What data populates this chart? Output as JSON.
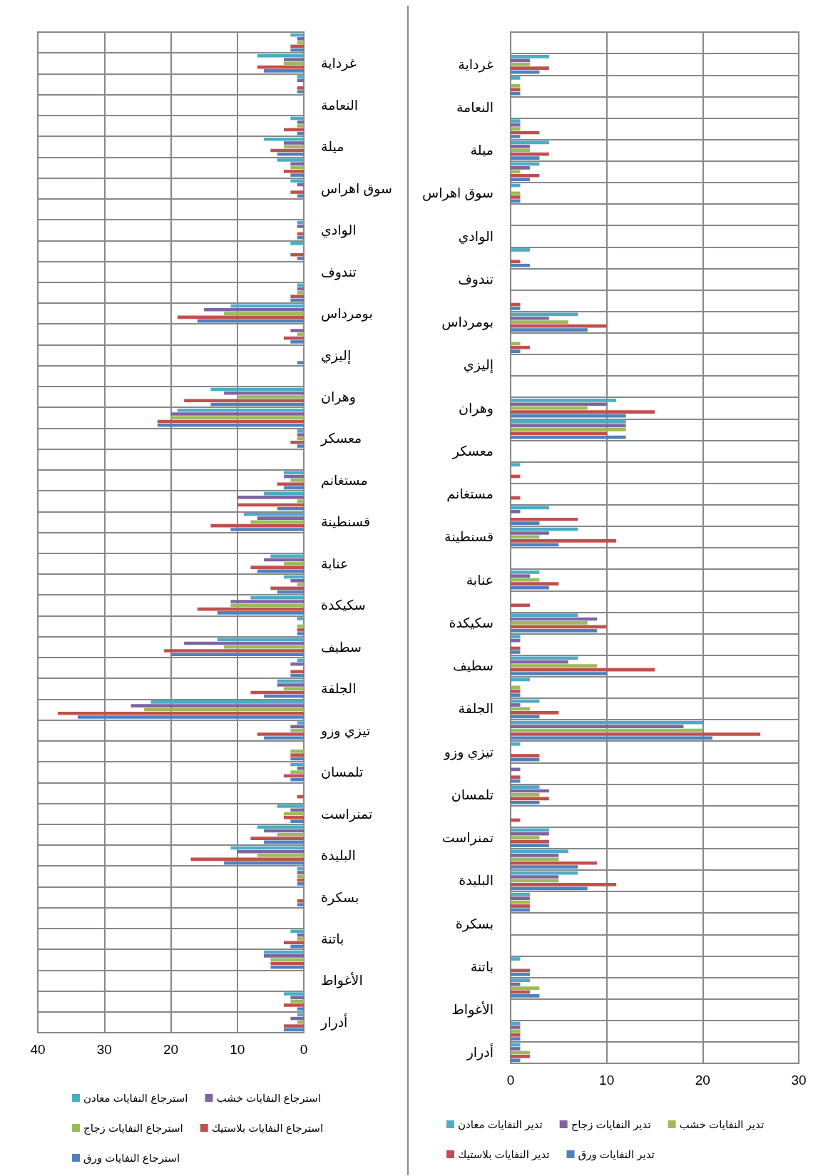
{
  "chart_data": [
    {
      "type": "bar",
      "orientation": "horizontal",
      "grid": true,
      "legend": "bottom",
      "categories": [
        null,
        "غرداية",
        null,
        "النعامة",
        null,
        "ميلة",
        null,
        "سوق اهراس",
        null,
        "الوادي",
        null,
        "تندوف",
        null,
        "بومرداس",
        null,
        "إليزي",
        null,
        "وهران",
        null,
        "معسكر",
        null,
        "مستغانم",
        null,
        "قسنطينة",
        null,
        "عنابة",
        null,
        "سكيكدة",
        null,
        "سطيف",
        null,
        "الجلفة",
        null,
        "تيزي وزو",
        null,
        "تلمسان",
        null,
        "تمنراست",
        null,
        "البليدة",
        null,
        "بسكرة",
        null,
        "باتنة",
        null,
        "الأغواط",
        null,
        "أدرار"
      ],
      "xlim": [
        40,
        0
      ],
      "xticks": [
        0,
        10,
        20,
        30,
        40
      ],
      "series": [
        {
          "name": "استرجاع النفايات معادن",
          "color": "#4bacc6",
          "values": [
            2,
            7,
            1,
            0,
            2,
            6,
            4,
            2,
            0,
            1,
            2,
            0,
            1,
            11,
            0,
            0,
            0,
            14,
            19,
            1,
            0,
            3,
            6,
            9,
            0,
            5,
            3,
            8,
            1,
            13,
            1,
            4,
            23,
            1,
            0,
            2,
            0,
            4,
            7,
            11,
            1,
            0,
            0,
            2,
            6,
            0,
            3,
            1
          ]
        },
        {
          "name": "استرجاع النفايات خشب",
          "color": "#8064a2",
          "values": [
            1,
            3,
            1,
            0,
            1,
            3,
            2,
            1,
            0,
            1,
            0,
            0,
            1,
            15,
            2,
            0,
            0,
            12,
            20,
            1,
            0,
            3,
            10,
            7,
            0,
            6,
            2,
            11,
            0,
            18,
            2,
            4,
            26,
            2,
            0,
            1,
            0,
            2,
            6,
            10,
            1,
            0,
            0,
            1,
            6,
            0,
            2,
            2
          ]
        },
        {
          "name": "استرجاع النفايات زجاج",
          "color": "#9bbb59",
          "values": [
            1,
            3,
            0,
            0,
            1,
            3,
            2,
            0,
            0,
            0,
            0,
            0,
            1,
            12,
            1,
            0,
            0,
            10,
            20,
            1,
            0,
            2,
            1,
            8,
            0,
            3,
            1,
            11,
            1,
            12,
            0,
            3,
            24,
            2,
            2,
            2,
            0,
            3,
            4,
            7,
            1,
            0,
            0,
            1,
            5,
            0,
            2,
            1
          ]
        },
        {
          "name": "استرجاع النفايات بلاستيك",
          "color": "#c0504d",
          "values": [
            2,
            7,
            1,
            0,
            3,
            5,
            3,
            2,
            0,
            1,
            2,
            0,
            2,
            19,
            3,
            0,
            0,
            18,
            22,
            2,
            0,
            4,
            10,
            14,
            0,
            8,
            5,
            16,
            1,
            21,
            2,
            8,
            37,
            7,
            2,
            3,
            1,
            3,
            8,
            17,
            1,
            1,
            0,
            3,
            5,
            0,
            3,
            3
          ]
        },
        {
          "name": "استرجاع النفايات ورق",
          "color": "#4f81bd",
          "values": [
            2,
            6,
            1,
            0,
            1,
            4,
            2,
            1,
            0,
            1,
            1,
            0,
            2,
            16,
            2,
            1,
            0,
            14,
            22,
            1,
            0,
            3,
            4,
            11,
            0,
            7,
            4,
            13,
            1,
            20,
            2,
            6,
            34,
            6,
            2,
            2,
            0,
            2,
            6,
            12,
            1,
            1,
            0,
            2,
            5,
            0,
            1,
            3
          ]
        }
      ]
    },
    {
      "type": "bar",
      "orientation": "horizontal",
      "grid": true,
      "legend": "bottom",
      "categories": [
        null,
        "غرداية",
        null,
        "النعامة",
        null,
        "ميلة",
        null,
        "سوق اهراس",
        null,
        "الوادي",
        null,
        "تندوف",
        null,
        "بومرداس",
        null,
        "إليزي",
        null,
        "وهران",
        null,
        "معسكر",
        null,
        "مستغانم",
        null,
        "قسنطينة",
        null,
        "عنابة",
        null,
        "سكيكدة",
        null,
        "سطيف",
        null,
        "الجلفة",
        null,
        "تيزي وزو",
        null,
        "تلمسان",
        null,
        "تمنراست",
        null,
        "البليدة",
        null,
        "بسكرة",
        null,
        "باتنة",
        null,
        "الأغواط",
        null,
        "أدرار"
      ],
      "xlim": [
        0,
        30
      ],
      "xticks": [
        0,
        10,
        20,
        30
      ],
      "series": [
        {
          "name": "تدير النفايات معادن",
          "color": "#4bacc6",
          "values": [
            0,
            4,
            1,
            0,
            1,
            4,
            3,
            1,
            0,
            0,
            2,
            0,
            0,
            7,
            0,
            0,
            0,
            11,
            12,
            0,
            1,
            0,
            4,
            7,
            0,
            3,
            0,
            7,
            1,
            7,
            2,
            3,
            20,
            1,
            0,
            3,
            0,
            4,
            6,
            7,
            2,
            0,
            0,
            1,
            2,
            0,
            1,
            1
          ]
        },
        {
          "name": "تدير النفايات زجاج",
          "color": "#8064a2",
          "values": [
            0,
            2,
            0,
            0,
            1,
            2,
            2,
            0,
            0,
            0,
            0,
            0,
            0,
            4,
            0,
            0,
            0,
            10,
            12,
            0,
            0,
            0,
            1,
            4,
            0,
            2,
            0,
            9,
            1,
            6,
            0,
            1,
            18,
            0,
            1,
            4,
            0,
            4,
            5,
            5,
            2,
            0,
            0,
            0,
            1,
            0,
            1,
            1
          ]
        },
        {
          "name": "تدير النفايات خشب",
          "color": "#9bbb59",
          "values": [
            0,
            2,
            1,
            0,
            1,
            2,
            1,
            1,
            0,
            0,
            0,
            0,
            0,
            6,
            1,
            0,
            0,
            8,
            12,
            0,
            0,
            0,
            0,
            3,
            0,
            3,
            0,
            8,
            0,
            9,
            1,
            2,
            20,
            0,
            0,
            3,
            0,
            3,
            5,
            5,
            2,
            0,
            0,
            0,
            3,
            0,
            1,
            2
          ]
        },
        {
          "name": "تدير النفايات بلاستيك",
          "color": "#c0504d",
          "values": [
            0,
            4,
            1,
            0,
            3,
            4,
            3,
            1,
            0,
            0,
            1,
            0,
            1,
            10,
            2,
            0,
            0,
            15,
            10,
            0,
            1,
            1,
            7,
            11,
            0,
            5,
            2,
            10,
            1,
            15,
            1,
            5,
            26,
            3,
            1,
            4,
            1,
            4,
            9,
            11,
            2,
            0,
            0,
            2,
            2,
            0,
            1,
            2
          ]
        },
        {
          "name": "تدير النفايات ورق",
          "color": "#4f81bd",
          "values": [
            0,
            3,
            1,
            0,
            1,
            3,
            2,
            1,
            0,
            0,
            2,
            0,
            1,
            8,
            1,
            0,
            0,
            12,
            12,
            0,
            0,
            0,
            3,
            5,
            0,
            4,
            0,
            9,
            1,
            10,
            1,
            3,
            21,
            3,
            1,
            3,
            0,
            4,
            7,
            8,
            2,
            0,
            0,
            2,
            3,
            0,
            1,
            1
          ]
        }
      ]
    }
  ]
}
